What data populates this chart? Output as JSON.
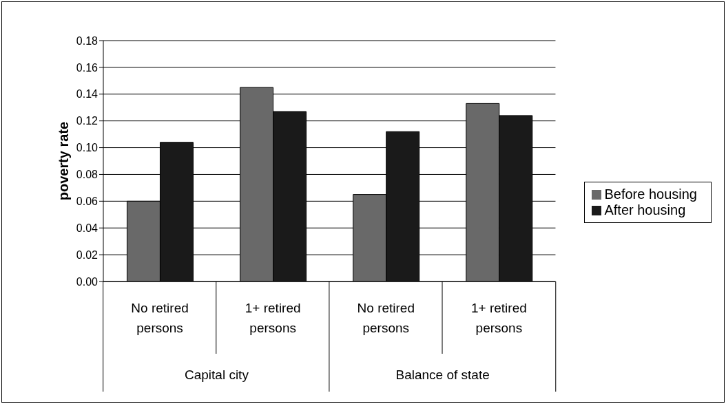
{
  "chart_data": {
    "type": "bar",
    "ylabel": "poverty rate",
    "categories": [
      "No retired persons",
      "1+ retired persons",
      "No retired persons",
      "1+ retired persons"
    ],
    "annotations": [
      "Capital city",
      "Balance of state"
    ],
    "series": [
      {
        "name": "Before housing",
        "color": "#696969",
        "values": [
          0.06,
          0.145,
          0.065,
          0.133
        ]
      },
      {
        "name": "After housing",
        "color": "#1a1a1a",
        "values": [
          0.104,
          0.127,
          0.112,
          0.124
        ]
      }
    ],
    "ylim": [
      0,
      0.18
    ],
    "yticks": [
      {
        "value": 0,
        "label": "0.00"
      },
      0.02,
      0.04,
      0.06,
      0.08,
      {
        "value": 0.1,
        "label": "0.10"
      },
      0.12,
      0.14,
      0.16,
      0.18
    ],
    "grid": "y",
    "legend": "right"
  }
}
